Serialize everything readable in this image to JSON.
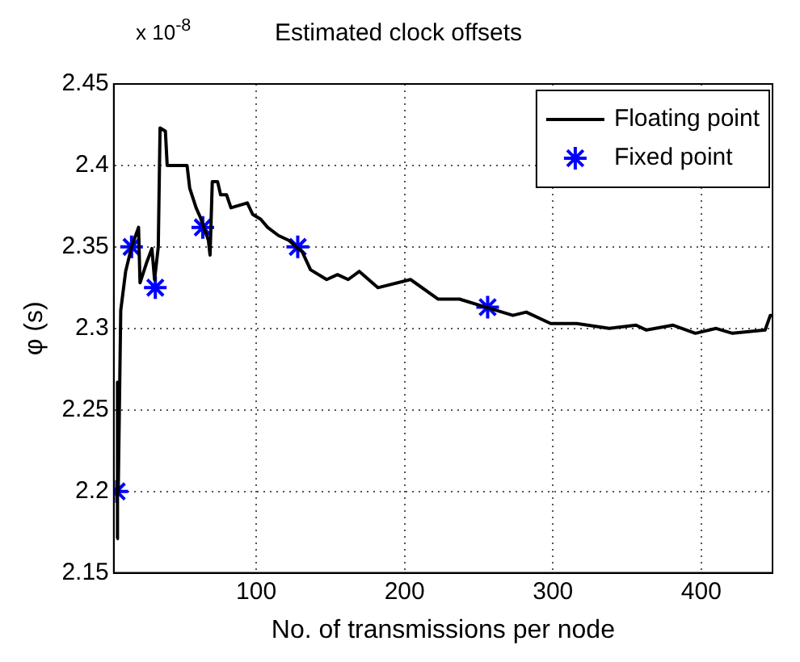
{
  "chart_data": {
    "type": "line",
    "title": "Estimated clock offsets",
    "xlabel": "No. of transmissions per node",
    "ylabel": "φ (s)",
    "annotations": [
      "x 10$^{-8}$"
    ],
    "xlim": [
      4,
      448
    ],
    "xticks": [
      100,
      200,
      300,
      400
    ],
    "ylim": [
      2.15,
      2.45
    ],
    "yticks": [
      2.15,
      2.2,
      2.25,
      2.3,
      2.35,
      2.4,
      2.45
    ],
    "grid": true,
    "legend": "top right",
    "series": [
      {
        "name": "Floating point",
        "type": "line",
        "color": "#000000",
        "marker": "none",
        "line_style": "solid",
        "x": [
          6,
          6.5,
          7,
          8.7,
          12,
          16,
          20.7,
          21.7,
          26,
          29.7,
          31.5,
          34,
          35.2,
          38.8,
          40,
          53.4,
          55.2,
          59.5,
          62.4,
          67.8,
          68.9,
          70.4,
          74,
          76,
          80,
          83,
          94,
          97.6,
          103,
          107.7,
          115,
          122,
          131,
          136.6,
          147.5,
          154.8,
          162,
          169.5,
          182,
          204,
          222.5,
          237,
          255,
          273,
          282,
          298.5,
          316,
          338,
          356,
          363,
          381,
          396,
          410,
          421,
          443,
          446.5,
          448
        ],
        "values": [
          2.171,
          2.267,
          2.2,
          2.311,
          2.335,
          2.35,
          2.362,
          2.328,
          2.34,
          2.349,
          2.33,
          2.35,
          2.423,
          2.421,
          2.4,
          2.4,
          2.386,
          2.374,
          2.368,
          2.354,
          2.345,
          2.39,
          2.39,
          2.382,
          2.382,
          2.374,
          2.377,
          2.37,
          2.367,
          2.362,
          2.357,
          2.354,
          2.347,
          2.336,
          2.33,
          2.333,
          2.33,
          2.335,
          2.325,
          2.33,
          2.318,
          2.318,
          2.313,
          2.308,
          2.31,
          2.303,
          2.303,
          2.3,
          2.302,
          2.299,
          2.302,
          2.297,
          2.3,
          2.297,
          2.299,
          2.308,
          2.308
        ]
      },
      {
        "name": "Fixed point",
        "type": "scatter",
        "color": "#0000ff",
        "marker": "cross",
        "x": [
          6,
          16,
          32,
          64,
          128,
          256
        ],
        "values": [
          2.2,
          2.35,
          2.325,
          2.362,
          2.35,
          2.313
        ]
      }
    ]
  }
}
